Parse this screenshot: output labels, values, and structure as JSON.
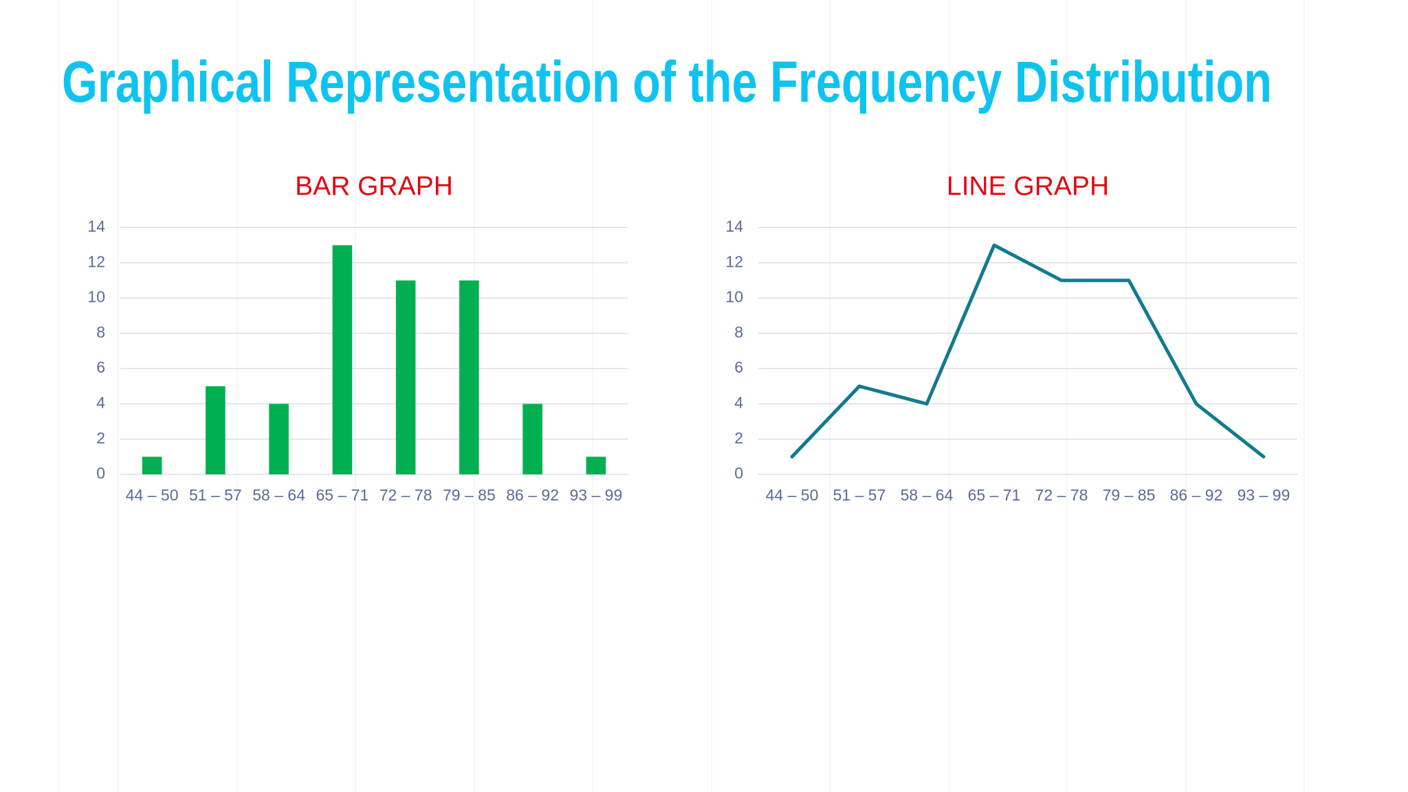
{
  "title": "Graphical Representation of the Frequency Distribution",
  "chart_data": [
    {
      "type": "bar",
      "title": "BAR GRAPH",
      "categories": [
        "44 – 50",
        "51 – 57",
        "58 – 64",
        "65 – 71",
        "72 – 78",
        "79 – 85",
        "86 – 92",
        "93 – 99"
      ],
      "values": [
        1,
        5,
        4,
        13,
        11,
        11,
        4,
        1
      ],
      "color": "#00b050",
      "ylim": [
        0,
        14
      ],
      "yticks": [
        0,
        2,
        4,
        6,
        8,
        10,
        12,
        14
      ],
      "grid": true
    },
    {
      "type": "line",
      "title": "LINE GRAPH",
      "categories": [
        "44 – 50",
        "51 – 57",
        "58 – 64",
        "65 – 71",
        "72 – 78",
        "79 – 85",
        "86 – 92",
        "93 – 99"
      ],
      "values": [
        1,
        5,
        4,
        13,
        11,
        11,
        4,
        1
      ],
      "color": "#127a8f",
      "ylim": [
        0,
        14
      ],
      "yticks": [
        0,
        2,
        4,
        6,
        8,
        10,
        12,
        14
      ],
      "grid": true
    }
  ]
}
